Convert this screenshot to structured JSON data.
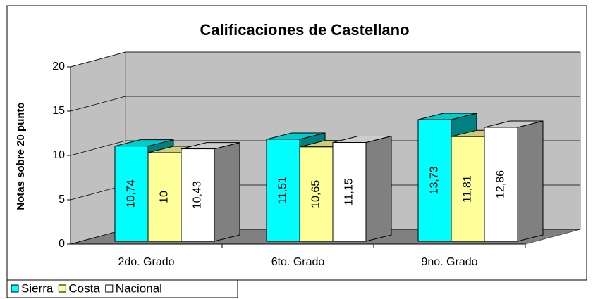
{
  "chart_data": {
    "type": "bar3d",
    "title": "Calificaciones de Castellano",
    "y_label": "Notas sobre 20 punto",
    "categories": [
      "2do. Grado",
      "6to. Grado",
      "9no. Grado"
    ],
    "series": [
      {
        "name": "Sierra",
        "color": "#00ffff",
        "values": [
          10.74,
          11.51,
          13.73
        ],
        "value_labels": [
          "10,74",
          "11,51",
          "13,73"
        ]
      },
      {
        "name": "Costa",
        "color": "#ffff99",
        "values": [
          10,
          10.65,
          11.81
        ],
        "value_labels": [
          "10",
          "10,65",
          "11,81"
        ]
      },
      {
        "name": "Nacional",
        "color": "#ffffff",
        "values": [
          10.43,
          11.15,
          12.86
        ],
        "value_labels": [
          "10,43",
          "11,15",
          "12,86"
        ]
      }
    ],
    "ylim": [
      0,
      20
    ],
    "yticks": [
      0,
      5,
      10,
      15,
      20
    ],
    "grid": true
  }
}
